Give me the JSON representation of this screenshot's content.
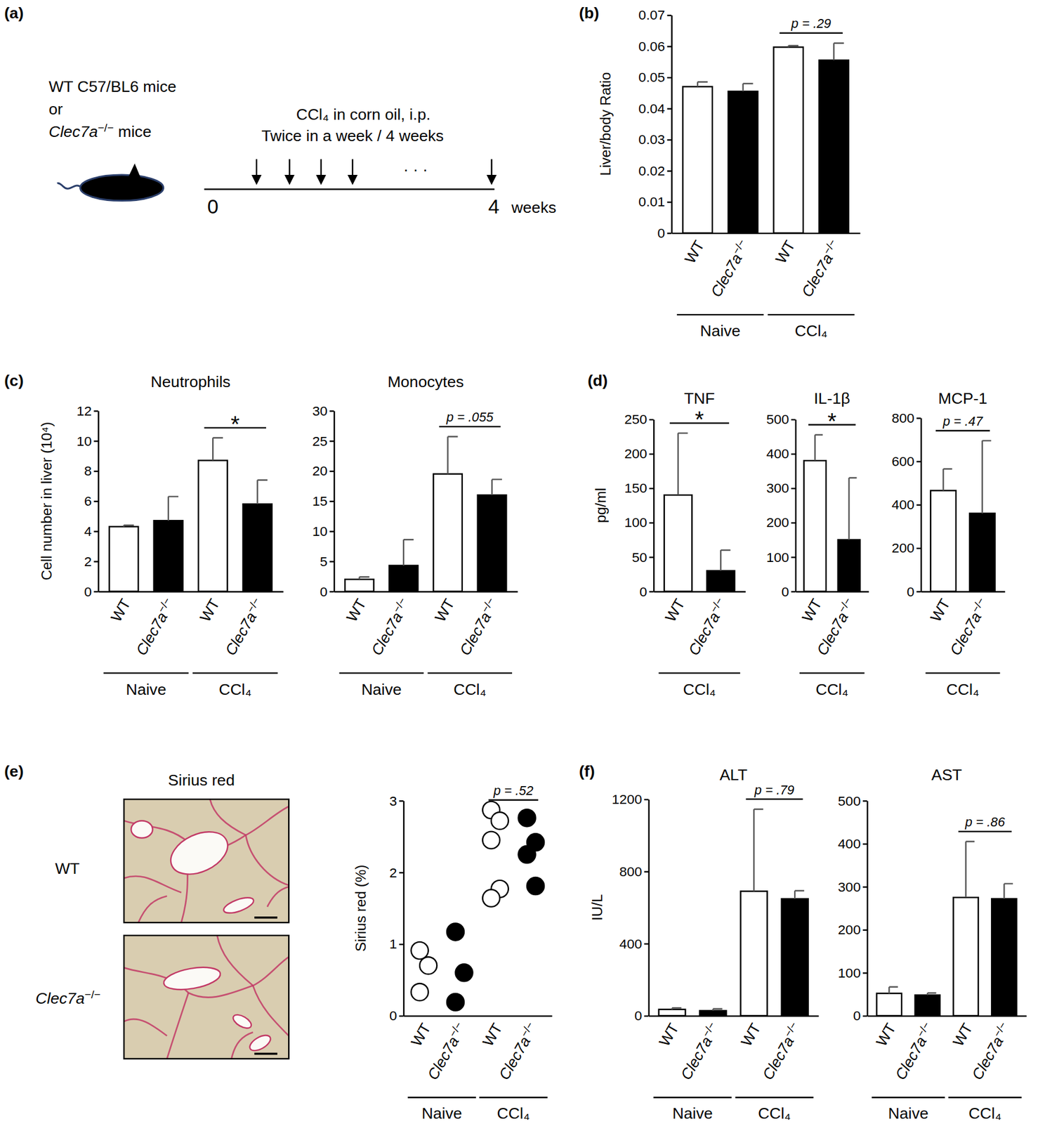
{
  "panels": [
    "(a)",
    "(b)",
    "(c)",
    "(d)",
    "(e)",
    "(f)"
  ],
  "diagram": {
    "mouse": [
      "WT C57/BL6 mice",
      "or",
      "Clec7a−/− mice"
    ],
    "treatment": [
      "CCl₄ in corn oil, i.p.",
      "Twice in a week / 4 weeks"
    ],
    "timeline": {
      "start": "0",
      "end": "4",
      "unit": "weeks",
      "ellipsis": "· · ·"
    }
  },
  "micrograph": {
    "title": "Sirius red",
    "rows": [
      "WT",
      "Clec7a−/−"
    ]
  },
  "chart_data": [
    {
      "type": "bar",
      "y_label": "Liver/body Ratio",
      "categories": [
        "WT",
        "Clec7a−/−",
        "WT",
        "Clec7a−/−"
      ],
      "group_labels": [
        "Naive",
        "Naive",
        "CCl₄",
        "CCl₄"
      ],
      "values": [
        0.047,
        0.0455,
        0.0597,
        0.0555
      ],
      "errors": [
        0.0015,
        0.0025,
        0.0005,
        0.0055
      ],
      "colors": [
        "#ffffff",
        "#000000",
        "#ffffff",
        "#000000"
      ],
      "ylim": [
        0,
        0.07
      ],
      "yticks": [
        0,
        0.01,
        0.02,
        0.03,
        0.04,
        0.05,
        0.06,
        0.07
      ],
      "annotation": "p = .29"
    },
    {
      "type": "bar",
      "title": "Neutrophils",
      "y_label": "Cell number in liver (10⁴)",
      "categories": [
        "WT",
        "Clec7a−/−",
        "WT",
        "Clec7a−/−"
      ],
      "group_labels": [
        "Naive",
        "Naive",
        "CCl₄",
        "CCl₄"
      ],
      "values": [
        4.3,
        4.7,
        8.7,
        5.8
      ],
      "errors": [
        0.1,
        1.6,
        1.5,
        1.6
      ],
      "colors": [
        "#ffffff",
        "#000000",
        "#ffffff",
        "#000000"
      ],
      "ylim": [
        0,
        12
      ],
      "yticks": [
        0,
        2,
        4,
        6,
        8,
        10,
        12
      ],
      "annotation": "*"
    },
    {
      "type": "bar",
      "title": "Monocytes",
      "categories": [
        "WT",
        "Clec7a−/−",
        "WT",
        "Clec7a−/−"
      ],
      "group_labels": [
        "Naive",
        "Naive",
        "CCl₄",
        "CCl₄"
      ],
      "values": [
        2,
        4.3,
        19.5,
        16
      ],
      "errors": [
        0.4,
        4.3,
        6.2,
        2.6
      ],
      "colors": [
        "#ffffff",
        "#000000",
        "#ffffff",
        "#000000"
      ],
      "ylim": [
        0,
        30
      ],
      "yticks": [
        0,
        5,
        10,
        15,
        20,
        25,
        30
      ],
      "annotation": "p = .055"
    },
    {
      "type": "bar",
      "title": "TNF",
      "y_label": "pg/ml",
      "categories": [
        "WT",
        "Clec7a−/−"
      ],
      "group_labels": [
        "CCl₄",
        "CCl₄"
      ],
      "values": [
        140,
        30
      ],
      "errors": [
        90,
        30
      ],
      "colors": [
        "#ffffff",
        "#000000"
      ],
      "ylim": [
        0,
        250
      ],
      "yticks": [
        0,
        50,
        100,
        150,
        200,
        250
      ],
      "annotation": "*"
    },
    {
      "type": "bar",
      "title": "IL-1β",
      "categories": [
        "WT",
        "Clec7a−/−"
      ],
      "group_labels": [
        "CCl₄",
        "CCl₄"
      ],
      "values": [
        380,
        150
      ],
      "errors": [
        75,
        180
      ],
      "colors": [
        "#ffffff",
        "#000000"
      ],
      "ylim": [
        0,
        500
      ],
      "yticks": [
        0,
        100,
        200,
        300,
        400,
        500
      ],
      "annotation": "*"
    },
    {
      "type": "bar",
      "title": "MCP-1",
      "categories": [
        "WT",
        "Clec7a−/−"
      ],
      "group_labels": [
        "CCl₄",
        "CCl₄"
      ],
      "values": [
        465,
        360
      ],
      "errors": [
        100,
        335
      ],
      "colors": [
        "#ffffff",
        "#000000"
      ],
      "ylim": [
        0,
        800
      ],
      "yticks": [
        0,
        200,
        400,
        600,
        800
      ],
      "annotation": "p = .47"
    },
    {
      "type": "scatter",
      "y_label": "Sirius red (%)",
      "marker": "circle",
      "categories": [
        "WT",
        "Clec7a−/−",
        "WT",
        "Clec7a−/−"
      ],
      "group_labels": [
        "Naive",
        "Naive",
        "CCl₄",
        "CCl₄"
      ],
      "values": [
        [
          0.91,
          0.7,
          0.33
        ],
        [
          1.17,
          0.6,
          0.19
        ],
        [
          2.87,
          2.72,
          2.45,
          1.77,
          1.64
        ],
        [
          2.76,
          2.42,
          2.25,
          1.81
        ]
      ],
      "colors": [
        "#ffffff",
        "#000000",
        "#ffffff",
        "#000000"
      ],
      "ylim": [
        0,
        3
      ],
      "yticks": [
        0,
        1,
        2,
        3
      ],
      "annotation": "p = .52"
    },
    {
      "type": "bar",
      "title": "ALT",
      "y_label": "IU/L",
      "categories": [
        "WT",
        "Clec7a−/−",
        "WT",
        "Clec7a−/−"
      ],
      "group_labels": [
        "Naive",
        "Naive",
        "CCl₄",
        "CCl₄"
      ],
      "values": [
        35,
        28,
        690,
        648
      ],
      "errors": [
        8,
        10,
        455,
        45
      ],
      "colors": [
        "#ffffff",
        "#000000",
        "#ffffff",
        "#000000"
      ],
      "ylim": [
        0,
        1200
      ],
      "yticks": [
        0,
        400,
        800,
        1200
      ],
      "annotation": "p = .79"
    },
    {
      "type": "bar",
      "title": "AST",
      "categories": [
        "WT",
        "Clec7a−/−",
        "WT",
        "Clec7a−/−"
      ],
      "group_labels": [
        "Naive",
        "Naive",
        "CCl₄",
        "CCl₄"
      ],
      "values": [
        52,
        48,
        275,
        272
      ],
      "errors": [
        15,
        5,
        130,
        35
      ],
      "colors": [
        "#ffffff",
        "#000000",
        "#ffffff",
        "#000000"
      ],
      "ylim": [
        0,
        500
      ],
      "yticks": [
        0,
        100,
        200,
        300,
        400,
        500
      ],
      "annotation": "p = .86"
    }
  ]
}
